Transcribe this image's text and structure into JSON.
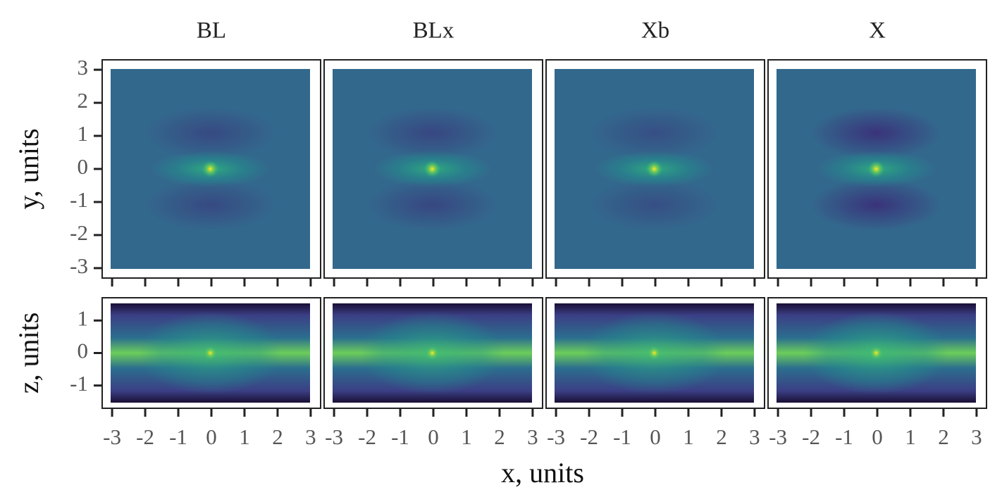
{
  "chart_data": {
    "type": "heatmap-grid",
    "columns": [
      "BL",
      "BLx",
      "Xb",
      "X"
    ],
    "xlabel": "x, units",
    "xlim": [
      -3.3,
      3.3
    ],
    "xticks": [
      -3,
      -2,
      -1,
      0,
      1,
      2,
      3
    ],
    "rows": [
      {
        "ylabel": "y, units",
        "ylim": [
          -3.3,
          3.3
        ],
        "yticks": [
          -3,
          -2,
          -1,
          0,
          1,
          2,
          3
        ]
      },
      {
        "ylabel": "z, units",
        "ylim": [
          -1.7,
          1.7
        ],
        "yticks": [
          -1,
          0,
          1
        ]
      }
    ]
  }
}
